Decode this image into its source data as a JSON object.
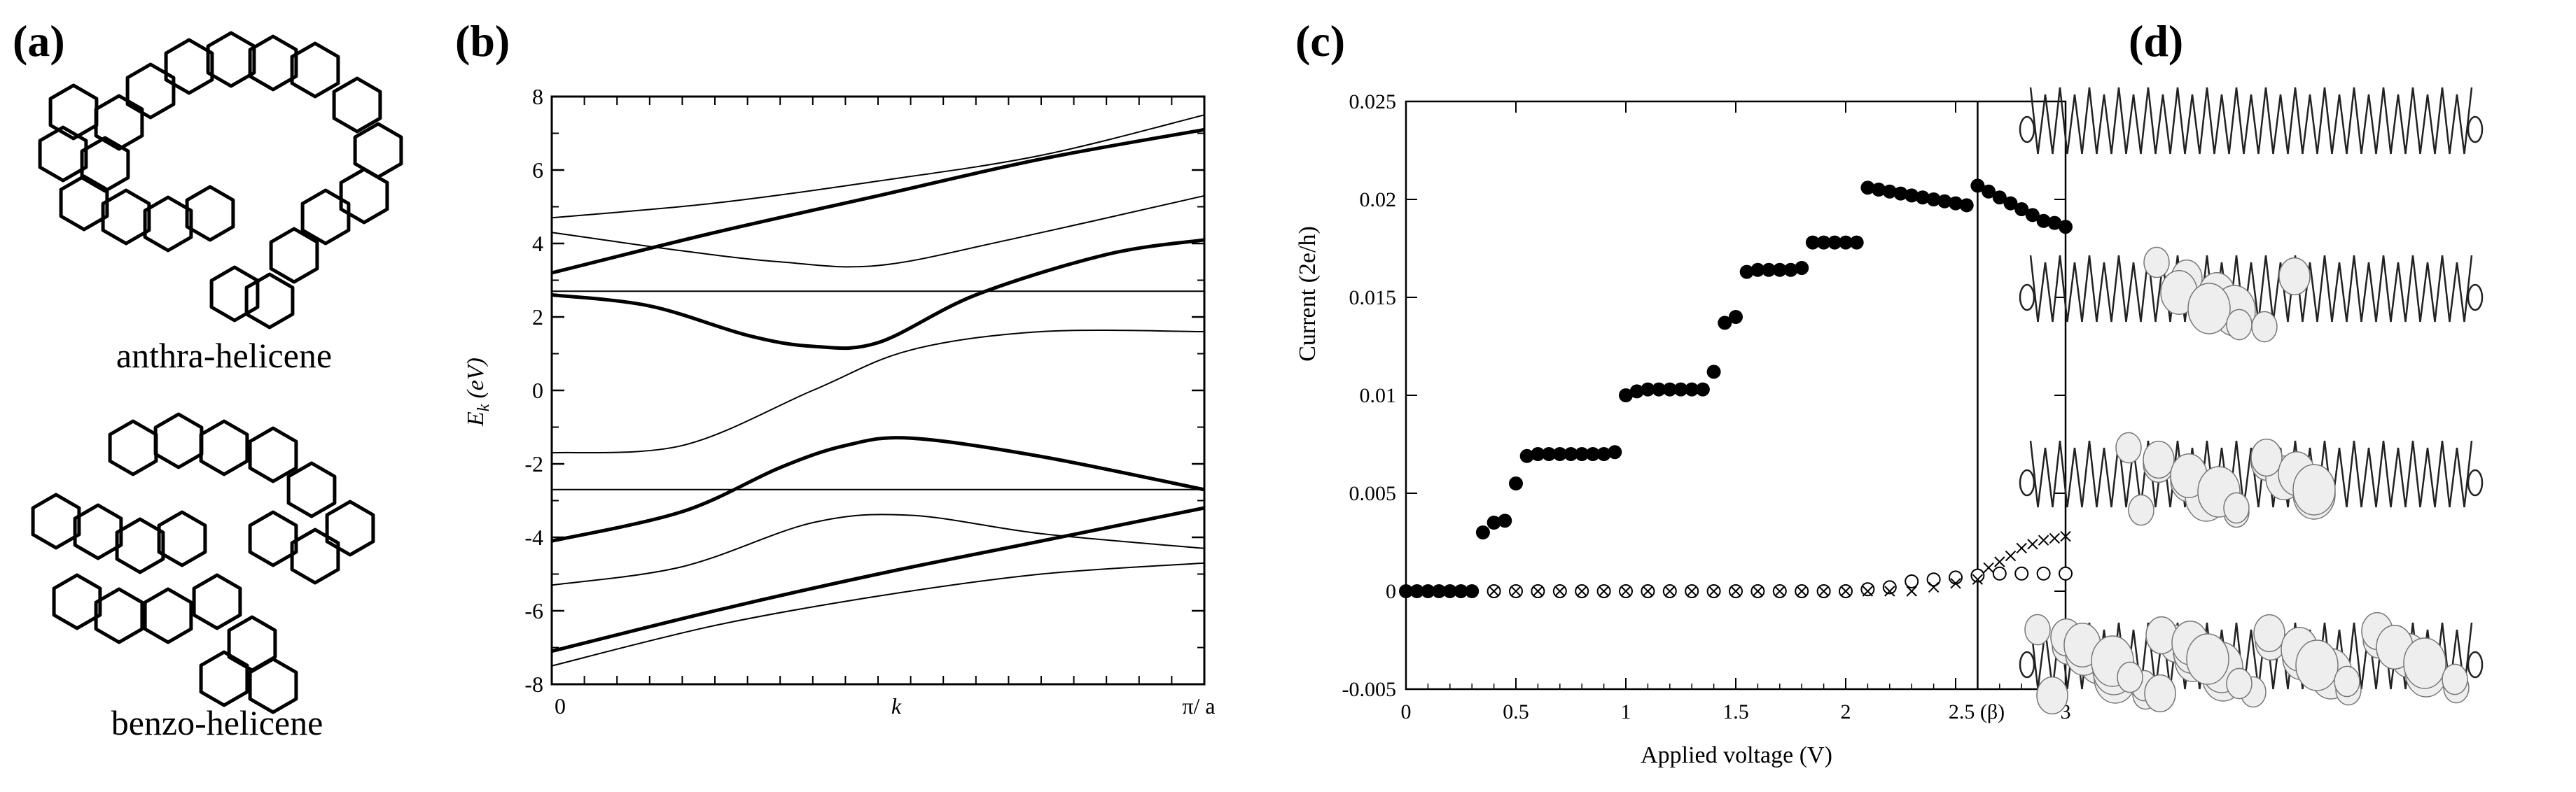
{
  "figure": {
    "panel_labels": {
      "a": "(a)",
      "b": "(b)",
      "c": "(c)",
      "d": "(d)"
    }
  },
  "panel_a": {
    "molecules": [
      {
        "name": "anthra-helicene",
        "label": "anthra-helicene"
      },
      {
        "name": "benzo-helicene",
        "label": "benzo-helicene"
      }
    ]
  },
  "panel_b": {
    "chart_data": {
      "type": "line",
      "title": "",
      "xlabel": "k",
      "ylabel": "E_k (eV)",
      "ylabel_main": "E",
      "ylabel_sub": "k",
      "ylabel_unit": "(eV)",
      "xlim": [
        0,
        1
      ],
      "ylim": [
        -8,
        8
      ],
      "yticks": [
        "8",
        "6",
        "4",
        "2",
        "0",
        "-2",
        "-4",
        "-6",
        "-8"
      ],
      "xtick_labels": {
        "left": "0",
        "middle": "k",
        "right": "π/ a"
      },
      "series": [
        {
          "name": "band-thick-1",
          "style": "thick",
          "x": [
            0,
            0.25,
            0.5,
            0.75,
            1
          ],
          "y": [
            -7.1,
            -6.0,
            -5.0,
            -4.1,
            -3.2
          ]
        },
        {
          "name": "band-thick-2",
          "style": "thick",
          "x": [
            0,
            0.2,
            0.35,
            0.45,
            0.55,
            0.75,
            1
          ],
          "y": [
            -4.1,
            -3.3,
            -2.1,
            -1.5,
            -1.3,
            -1.8,
            -2.7
          ]
        },
        {
          "name": "band-thick-3",
          "style": "thick",
          "x": [
            0,
            0.15,
            0.3,
            0.4,
            0.5,
            0.65,
            0.85,
            1
          ],
          "y": [
            2.6,
            2.3,
            1.5,
            1.2,
            1.3,
            2.6,
            3.7,
            4.1
          ]
        },
        {
          "name": "band-thick-4",
          "style": "thick",
          "x": [
            0,
            0.25,
            0.5,
            0.75,
            1
          ],
          "y": [
            3.2,
            4.3,
            5.3,
            6.3,
            7.1
          ]
        },
        {
          "name": "band-thin-1",
          "style": "thin",
          "x": [
            0,
            0.25,
            0.5,
            0.75,
            1
          ],
          "y": [
            -7.5,
            -6.4,
            -5.6,
            -5.0,
            -4.7
          ]
        },
        {
          "name": "band-thin-2",
          "style": "thin",
          "x": [
            0,
            0.2,
            0.4,
            0.55,
            0.75,
            1
          ],
          "y": [
            -5.3,
            -4.8,
            -3.6,
            -3.4,
            -3.9,
            -4.3
          ]
        },
        {
          "name": "band-thin-3",
          "style": "thin",
          "x": [
            0,
            0.2,
            0.4,
            0.55,
            0.75,
            1
          ],
          "y": [
            -1.7,
            -1.5,
            0.0,
            1.1,
            1.6,
            1.6
          ]
        },
        {
          "name": "band-thin-4",
          "style": "thin",
          "x": [
            0,
            0.2,
            0.35,
            0.5,
            0.7,
            1
          ],
          "y": [
            4.3,
            3.8,
            3.5,
            3.4,
            4.1,
            5.3
          ]
        },
        {
          "name": "band-thin-5",
          "style": "thin",
          "x": [
            0,
            0.25,
            0.5,
            0.75,
            1
          ],
          "y": [
            4.7,
            5.1,
            5.7,
            6.4,
            7.5
          ]
        },
        {
          "name": "flat-band-upper",
          "style": "thin",
          "x": [
            0,
            1
          ],
          "y": [
            2.7,
            2.7
          ]
        },
        {
          "name": "flat-band-lower",
          "style": "thin",
          "x": [
            0,
            1
          ],
          "y": [
            -2.7,
            -2.7
          ]
        }
      ]
    }
  },
  "panel_c": {
    "chart_data": {
      "type": "scatter",
      "title": "",
      "xlabel": "Applied voltage (V)",
      "ylabel": "Current (2e/h)",
      "xlim": [
        0,
        3
      ],
      "ylim": [
        -0.005,
        0.025
      ],
      "xticks": [
        "0",
        "0.5",
        "1",
        "1.5",
        "2",
        "2.5 (β)",
        "3"
      ],
      "yticks": [
        "0.025",
        "0.02",
        "0.015",
        "0.01",
        "0.005",
        "0",
        "-0.005"
      ],
      "vertical_line": {
        "x": 2.6,
        "label": "(β)"
      },
      "series": [
        {
          "name": "filled-circles",
          "marker": "filled-circle",
          "x": [
            0,
            0.05,
            0.1,
            0.15,
            0.2,
            0.25,
            0.3,
            0.35,
            0.4,
            0.45,
            0.5,
            0.55,
            0.6,
            0.65,
            0.7,
            0.75,
            0.8,
            0.85,
            0.9,
            0.95,
            1.0,
            1.05,
            1.1,
            1.15,
            1.2,
            1.25,
            1.3,
            1.35,
            1.4,
            1.45,
            1.5,
            1.55,
            1.6,
            1.65,
            1.7,
            1.75,
            1.8,
            1.85,
            1.9,
            1.95,
            2.0,
            2.05,
            2.1,
            2.15,
            2.2,
            2.25,
            2.3,
            2.35,
            2.4,
            2.45,
            2.5,
            2.55,
            2.6,
            2.65,
            2.7,
            2.75,
            2.8,
            2.85,
            2.9,
            2.95,
            3.0
          ],
          "y": [
            0,
            0,
            0,
            0,
            0,
            0,
            0,
            0.003,
            0.0035,
            0.0036,
            0.0055,
            0.0069,
            0.007,
            0.007,
            0.007,
            0.007,
            0.007,
            0.007,
            0.007,
            0.0071,
            0.01,
            0.0102,
            0.0103,
            0.0103,
            0.0103,
            0.0103,
            0.0103,
            0.0103,
            0.0112,
            0.0137,
            0.014,
            0.0163,
            0.0164,
            0.0164,
            0.0164,
            0.0164,
            0.0165,
            0.0178,
            0.0178,
            0.0178,
            0.0178,
            0.0178,
            0.0206,
            0.0205,
            0.0204,
            0.0203,
            0.0202,
            0.0201,
            0.02,
            0.0199,
            0.0198,
            0.0197,
            0.0207,
            0.0204,
            0.0201,
            0.0198,
            0.0195,
            0.0192,
            0.0189,
            0.0188,
            0.0186
          ]
        },
        {
          "name": "open-circles",
          "marker": "open-circle",
          "x": [
            0.4,
            0.5,
            0.6,
            0.7,
            0.8,
            0.9,
            1.0,
            1.1,
            1.2,
            1.3,
            1.4,
            1.5,
            1.6,
            1.7,
            1.8,
            1.9,
            2.0,
            2.1,
            2.2,
            2.3,
            2.4,
            2.5,
            2.6,
            2.7,
            2.8,
            2.9,
            3.0
          ],
          "y": [
            0,
            0,
            0,
            0,
            0,
            0,
            0,
            0,
            0,
            0,
            0,
            0,
            0,
            0,
            0,
            0,
            0,
            0.0001,
            0.0002,
            0.0005,
            0.0006,
            0.0007,
            0.0008,
            0.0009,
            0.0009,
            0.0009,
            0.0009
          ]
        },
        {
          "name": "crosses",
          "marker": "x",
          "x": [
            0.4,
            0.5,
            0.6,
            0.7,
            0.8,
            0.9,
            1.0,
            1.1,
            1.2,
            1.3,
            1.4,
            1.5,
            1.6,
            1.7,
            1.8,
            1.9,
            2.0,
            2.1,
            2.2,
            2.3,
            2.4,
            2.5,
            2.6,
            2.65,
            2.7,
            2.75,
            2.8,
            2.85,
            2.9,
            2.95,
            3.0
          ],
          "y": [
            0,
            0,
            0,
            0,
            0,
            0,
            0,
            0,
            0,
            0,
            0,
            0,
            0,
            0,
            0,
            0,
            0,
            0,
            0,
            0,
            0.0002,
            0.0004,
            0.0006,
            0.0012,
            0.0015,
            0.0018,
            0.0022,
            0.0024,
            0.0026,
            0.0027,
            0.0028
          ]
        }
      ]
    }
  }
}
